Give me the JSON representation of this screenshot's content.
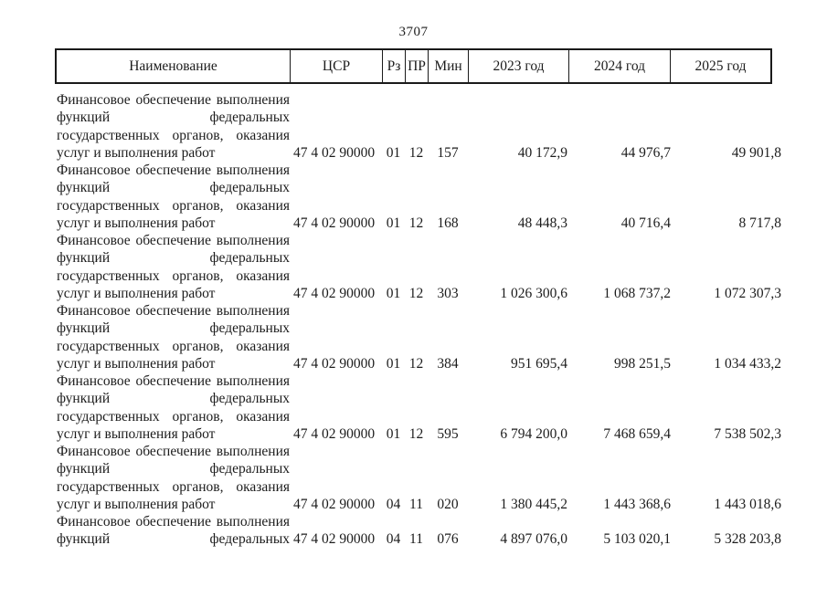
{
  "page": {
    "number": "3707"
  },
  "table": {
    "headers": [
      "Наименование",
      "ЦСР",
      "Рз",
      "ПР",
      "Мин",
      "2023 год",
      "2024 год",
      "2025 год"
    ],
    "rows": [
      {
        "name_lines": [
          "Финансовое обеспечение выполнения",
          "функций федеральных",
          "государственных органов, оказания",
          "услуг и выполнения работ"
        ],
        "continued": false,
        "csr": "47 4 02 90000",
        "rz": "01",
        "pr": "12",
        "min": "157",
        "y2023": "40 172,9",
        "y2024": "44 976,7",
        "y2025": "49 901,8"
      },
      {
        "name_lines": [
          "Финансовое обеспечение выполнения",
          "функций федеральных",
          "государственных органов, оказания",
          "услуг и выполнения работ"
        ],
        "continued": false,
        "csr": "47 4 02 90000",
        "rz": "01",
        "pr": "12",
        "min": "168",
        "y2023": "48 448,3",
        "y2024": "40 716,4",
        "y2025": "8 717,8"
      },
      {
        "name_lines": [
          "Финансовое обеспечение выполнения",
          "функций федеральных",
          "государственных органов, оказания",
          "услуг и выполнения работ"
        ],
        "continued": false,
        "csr": "47 4 02 90000",
        "rz": "01",
        "pr": "12",
        "min": "303",
        "y2023": "1 026 300,6",
        "y2024": "1 068 737,2",
        "y2025": "1 072 307,3"
      },
      {
        "name_lines": [
          "Финансовое обеспечение выполнения",
          "функций федеральных",
          "государственных органов, оказания",
          "услуг и выполнения работ"
        ],
        "continued": false,
        "csr": "47 4 02 90000",
        "rz": "01",
        "pr": "12",
        "min": "384",
        "y2023": "951 695,4",
        "y2024": "998 251,5",
        "y2025": "1 034 433,2"
      },
      {
        "name_lines": [
          "Финансовое обеспечение выполнения",
          "функций федеральных",
          "государственных органов, оказания",
          "услуг и выполнения работ"
        ],
        "continued": false,
        "csr": "47 4 02 90000",
        "rz": "01",
        "pr": "12",
        "min": "595",
        "y2023": "6 794 200,0",
        "y2024": "7 468 659,4",
        "y2025": "7 538 502,3"
      },
      {
        "name_lines": [
          "Финансовое обеспечение выполнения",
          "функций федеральных",
          "государственных органов, оказания",
          "услуг и выполнения работ"
        ],
        "continued": false,
        "csr": "47 4 02 90000",
        "rz": "04",
        "pr": "11",
        "min": "020",
        "y2023": "1 380 445,2",
        "y2024": "1 443 368,6",
        "y2025": "1 443 018,6"
      },
      {
        "name_lines": [
          "Финансовое обеспечение выполнения",
          "функций федеральных"
        ],
        "continued": true,
        "csr": "47 4 02 90000",
        "rz": "04",
        "pr": "11",
        "min": "076",
        "y2023": "4 897 076,0",
        "y2024": "5 103 020,1",
        "y2025": "5 328 203,8"
      }
    ]
  }
}
